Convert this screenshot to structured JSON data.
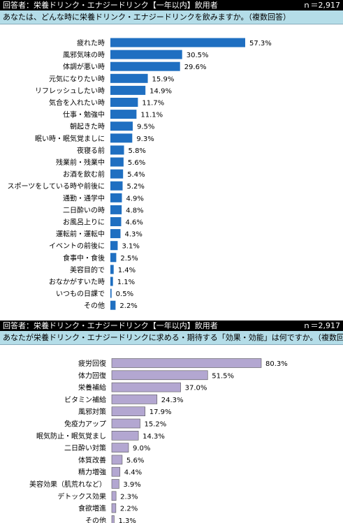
{
  "chart_data": [
    {
      "type": "bar",
      "orientation": "horizontal",
      "header": "回答者：栄養ドリンク・エナジードリンク【一年以内】飲用者",
      "n_label": "ｎ＝2,917",
      "question": "あなたは、どんな時に栄養ドリンク・エナジードリンクを飲みますか。（複数回答）",
      "bar_color": "#1f6fc1",
      "categories": [
        "疲れた時",
        "風邪気味の時",
        "体調が悪い時",
        "元気になりたい時",
        "リフレッシュしたい時",
        "気合を入れたい時",
        "仕事・勉強中",
        "朝起きた時",
        "眠い時・眠気覚ましに",
        "夜寝る前",
        "残業前・残業中",
        "お酒を飲む前",
        "スポーツをしている時や前後に",
        "通勤・通学中",
        "二日酔いの時",
        "お風呂上りに",
        "運転前・運転中",
        "イベントの前後に",
        "食事中・食後",
        "美容目的で",
        "おなかがすいた時",
        "いつもの日課で",
        "その他"
      ],
      "values": [
        57.3,
        30.5,
        29.6,
        15.9,
        14.9,
        11.7,
        11.1,
        9.5,
        9.3,
        5.8,
        5.6,
        5.4,
        5.2,
        4.9,
        4.8,
        4.6,
        4.3,
        3.1,
        2.5,
        1.4,
        1.1,
        0.5,
        2.2
      ],
      "value_labels": [
        "57.3%",
        "30.5%",
        "29.6%",
        "15.9%",
        "14.9%",
        "11.7%",
        "11.1%",
        "9.5%",
        "9.3%",
        "5.8%",
        "5.6%",
        "5.4%",
        "5.2%",
        "4.9%",
        "4.8%",
        "4.6%",
        "4.3%",
        "3.1%",
        "2.5%",
        "1.4%",
        "1.1%",
        "0.5%",
        "2.2%"
      ],
      "xlim": [
        0,
        57.3
      ]
    },
    {
      "type": "bar",
      "orientation": "horizontal",
      "header": "回答者：栄養ドリンク・エナジードリンク【一年以内】飲用者",
      "n_label": "ｎ＝2,917",
      "question": "あなたが栄養ドリンク・エナジードリンクに求める・期待する「効果・効能」は何ですか。（複数回答）",
      "bar_color": "#b3a7d1",
      "categories": [
        "疲労回復",
        "体力回復",
        "栄養補給",
        "ビタミン補給",
        "風邪対策",
        "免疫力アップ",
        "眠気防止・眠気覚まし",
        "二日酔い対策",
        "体質改善",
        "精力増強",
        "美容効果（肌荒れなど）",
        "デトックス効果",
        "食欲増進",
        "その他"
      ],
      "values": [
        80.3,
        51.5,
        37.0,
        24.3,
        17.9,
        15.2,
        14.3,
        9.0,
        5.6,
        4.4,
        3.9,
        2.3,
        2.2,
        1.3
      ],
      "value_labels": [
        "80.3%",
        "51.5%",
        "37.0%",
        "24.3%",
        "17.9%",
        "15.2%",
        "14.3%",
        "9.0%",
        "5.6%",
        "4.4%",
        "3.9%",
        "2.3%",
        "2.2%",
        "1.3%"
      ],
      "xlim": [
        0,
        80.3
      ]
    }
  ]
}
